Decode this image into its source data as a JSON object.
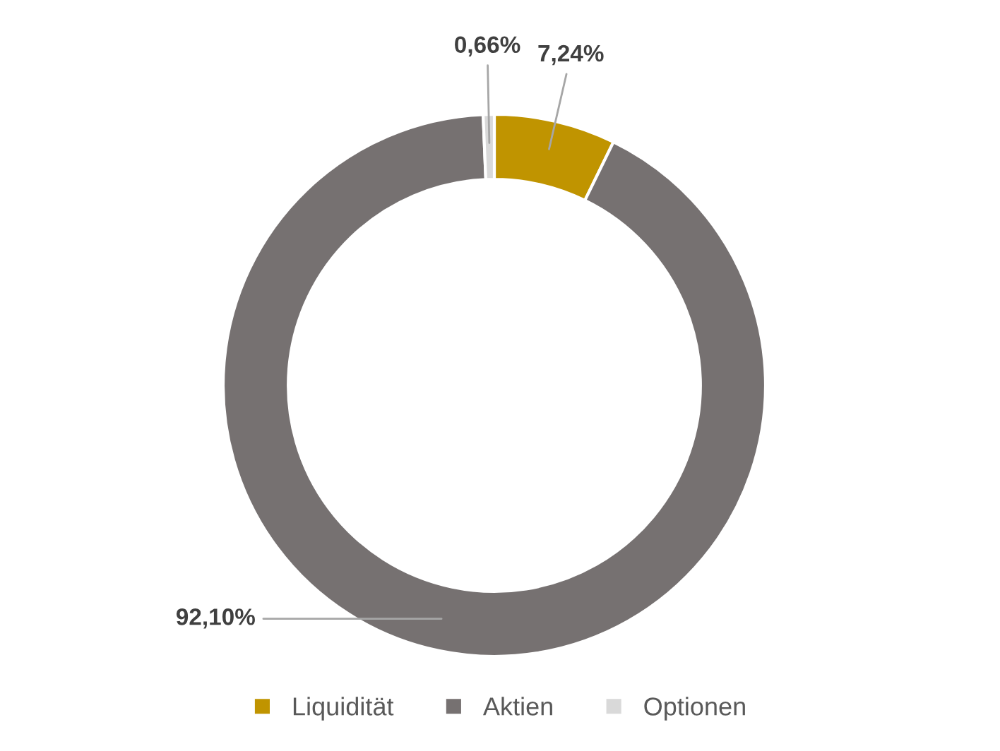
{
  "chart_data": {
    "type": "donut",
    "categories": [
      "Liquidität",
      "Aktien",
      "Optionen"
    ],
    "values": [
      7.24,
      92.1,
      0.66
    ],
    "colors": [
      "#c09400",
      "#767171",
      "#d9d9d9"
    ],
    "value_labels": [
      "7,24%",
      "92,10%",
      "0,66%"
    ],
    "legend": "bottom"
  }
}
